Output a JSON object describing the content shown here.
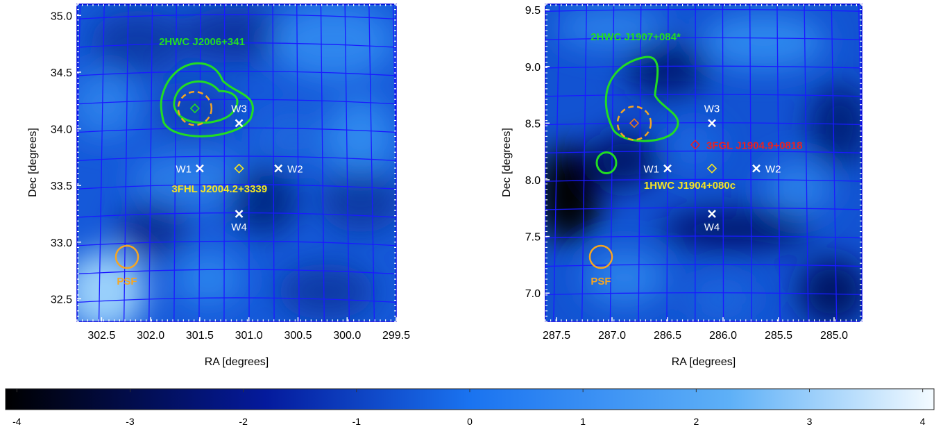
{
  "chart_data": [
    {
      "type": "heatmap",
      "xlabel": "RA [degrees]",
      "ylabel": "Dec [degrees]",
      "xlim": [
        302.75,
        299.5
      ],
      "ylim": [
        32.3,
        35.1
      ],
      "x_ticks": [
        "302.5",
        "302.0",
        "301.5",
        "301.0",
        "300.5",
        "300.0",
        "299.5"
      ],
      "y_ticks": [
        "32.5",
        "33.0",
        "33.5",
        "34.0",
        "34.5",
        "35.0"
      ],
      "markers": [
        {
          "label": "W1",
          "ra": 301.5,
          "dec": 33.65,
          "symbol": "x"
        },
        {
          "label": "W2",
          "ra": 300.7,
          "dec": 33.65,
          "symbol": "x"
        },
        {
          "label": "W3",
          "ra": 301.1,
          "dec": 34.05,
          "symbol": "x"
        },
        {
          "label": "W4",
          "ra": 301.1,
          "dec": 33.25,
          "symbol": "x"
        }
      ],
      "sources": [
        {
          "label": "2HWC J2006+341",
          "ra": 301.55,
          "dec": 34.18,
          "color": "#22dd22"
        },
        {
          "label": "3FHL J2004.2+3339",
          "ra": 301.1,
          "dec": 33.65,
          "color": "#f5e623"
        }
      ],
      "psf_label": "PSF"
    },
    {
      "type": "heatmap",
      "xlabel": "RA [degrees]",
      "ylabel": "Dec [degrees]",
      "xlim": [
        287.6,
        284.75
      ],
      "ylim": [
        6.75,
        9.55
      ],
      "x_ticks": [
        "287.5",
        "287.0",
        "286.5",
        "286.0",
        "285.5",
        "285.0"
      ],
      "y_ticks": [
        "7.0",
        "7.5",
        "8.0",
        "8.5",
        "9.0",
        "9.5"
      ],
      "markers": [
        {
          "label": "W1",
          "ra": 286.5,
          "dec": 8.1,
          "symbol": "x"
        },
        {
          "label": "W2",
          "ra": 285.7,
          "dec": 8.1,
          "symbol": "x"
        },
        {
          "label": "W3",
          "ra": 286.1,
          "dec": 8.5,
          "symbol": "x"
        },
        {
          "label": "W4",
          "ra": 286.1,
          "dec": 7.7,
          "symbol": "x"
        }
      ],
      "sources": [
        {
          "label": "2HWC J1907+084*",
          "ra": 286.8,
          "dec": 8.5,
          "color": "#22dd22"
        },
        {
          "label": "3FGL J1904.9+0818",
          "ra": 286.25,
          "dec": 8.31,
          "color": "#e82222"
        },
        {
          "label": "1HWC J1904+080c",
          "ra": 286.1,
          "dec": 8.1,
          "color": "#f5e623"
        }
      ],
      "psf_label": "PSF"
    },
    {
      "type": "colorbar",
      "range": [
        -4.1,
        4.1
      ],
      "ticks": [
        "-4",
        "-3",
        "-2",
        "-1",
        "0",
        "1",
        "2",
        "3",
        "4"
      ]
    }
  ],
  "colors": {
    "grid": "#1a1aff",
    "marker": "#ffffff",
    "psf": "#f5a623",
    "hwc": "#22dd22"
  }
}
